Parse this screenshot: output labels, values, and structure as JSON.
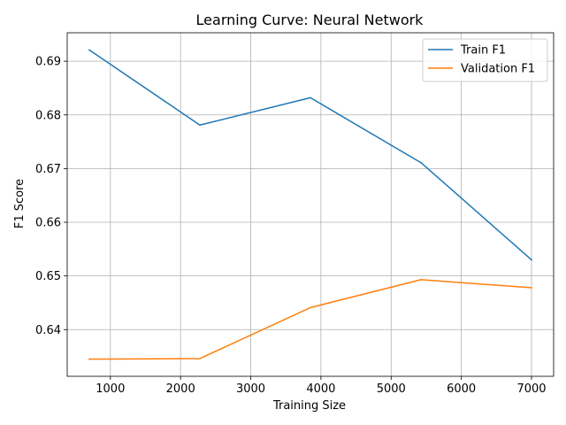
{
  "chart_data": {
    "type": "line",
    "title": "Learning Curve: Neural Network",
    "xlabel": "Training Size",
    "ylabel": "F1 Score",
    "xlim": [
      385,
      7315
    ],
    "ylim": [
      0.6313,
      0.6953
    ],
    "xticks": [
      1000,
      2000,
      3000,
      4000,
      5000,
      6000,
      7000
    ],
    "xtick_labels": [
      "1000",
      "2000",
      "3000",
      "4000",
      "5000",
      "6000",
      "7000"
    ],
    "yticks": [
      0.64,
      0.65,
      0.66,
      0.67,
      0.68,
      0.69
    ],
    "ytick_labels": [
      "0.64",
      "0.65",
      "0.66",
      "0.67",
      "0.68",
      "0.69"
    ],
    "grid": true,
    "legend_position": "upper right",
    "x": [
      700,
      2275,
      3850,
      5425,
      7000
    ],
    "series": [
      {
        "name": "Train F1",
        "color": "#1f77b4",
        "values": [
          0.6921,
          0.6781,
          0.6832,
          0.6711,
          0.653
        ]
      },
      {
        "name": "Validation F1",
        "color": "#ff7f0e",
        "values": [
          0.6345,
          0.6346,
          0.6441,
          0.6493,
          0.6478
        ]
      }
    ]
  }
}
